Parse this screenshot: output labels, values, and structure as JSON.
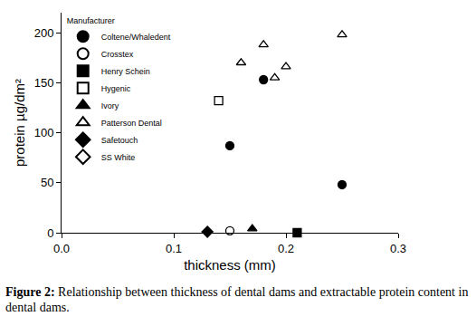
{
  "chart_data": {
    "type": "scatter",
    "x_label": "thickness (mm)",
    "y_label": "protein µg/dm²",
    "legend_title": "Manufacturer",
    "caption_label": "Figure 2:",
    "caption": "Relationship between thickness of dental dams and extractable protein content in dental dams.",
    "legend": "upper left",
    "grid": false,
    "xlim": [
      0,
      0.3
    ],
    "xticks": [
      {
        "value": 0,
        "label": "0.0"
      },
      0.1,
      0.2,
      0.3
    ],
    "ylim": [
      0,
      220
    ],
    "yticks": [
      0,
      50,
      100,
      150,
      200
    ],
    "series": [
      {
        "name": "Coltene/Whaledent",
        "color": "#000000",
        "marker": "circle",
        "x": [
          0.15,
          0.18,
          0.25
        ],
        "values": [
          87,
          153,
          48
        ]
      },
      {
        "name": "Crosstex",
        "color": "#000000",
        "marker": "circle-open",
        "x": [
          0.15
        ],
        "values": [
          2
        ]
      },
      {
        "name": "Henry Schein",
        "color": "#000000",
        "marker": "square",
        "x": [
          0.21
        ],
        "values": [
          0
        ]
      },
      {
        "name": "Hygenic",
        "color": "#000000",
        "marker": "square-open",
        "x": [
          0.14
        ],
        "values": [
          132
        ]
      },
      {
        "name": "Ivory",
        "color": "#000000",
        "marker": "triangle-up",
        "x": [
          0.17
        ],
        "values": [
          4
        ]
      },
      {
        "name": "Patterson Dental",
        "color": "#000000",
        "marker": "triangle-up-open",
        "x": [
          0.16,
          0.18,
          0.19,
          0.2,
          0.25
        ],
        "values": [
          170,
          188,
          155,
          166,
          198
        ]
      },
      {
        "name": "Safetouch",
        "color": "#000000",
        "marker": "diamond",
        "x": [
          0.13
        ],
        "values": [
          1
        ]
      },
      {
        "name": "SS White",
        "color": "#000000",
        "marker": "diamond-open",
        "x": [
          0.13
        ],
        "values": [
          1
        ]
      }
    ]
  }
}
